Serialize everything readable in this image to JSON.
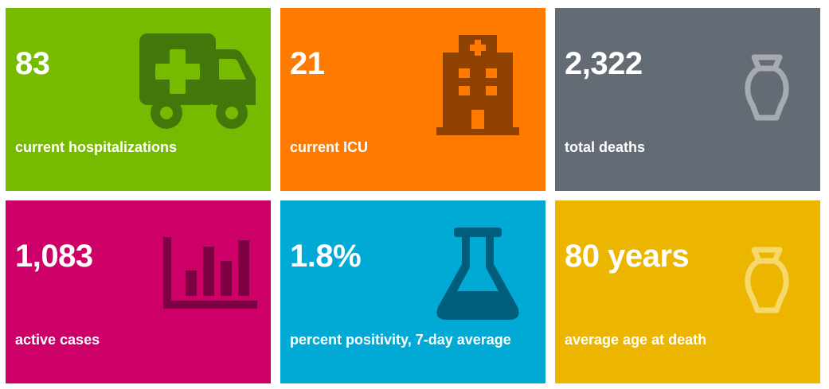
{
  "colors": {
    "green": "#77bb00",
    "orange": "#ff7a00",
    "gray": "#636b74",
    "pink": "#cc0066",
    "blue": "#00aad5",
    "gold": "#ecb600"
  },
  "tiles": [
    {
      "value": "83",
      "label": "current hospitalizations",
      "icon": "ambulance-icon"
    },
    {
      "value": "21",
      "label": "current ICU",
      "icon": "hospital-icon"
    },
    {
      "value": "2,322",
      "label": "total deaths",
      "icon": "urn-icon"
    },
    {
      "value": "1,083",
      "label": "active cases",
      "icon": "bar-chart-icon"
    },
    {
      "value": "1.8%",
      "label": "percent positivity, 7-day average",
      "icon": "flask-icon"
    },
    {
      "value": "80 years",
      "label": "average age at death",
      "icon": "urn-icon"
    }
  ]
}
